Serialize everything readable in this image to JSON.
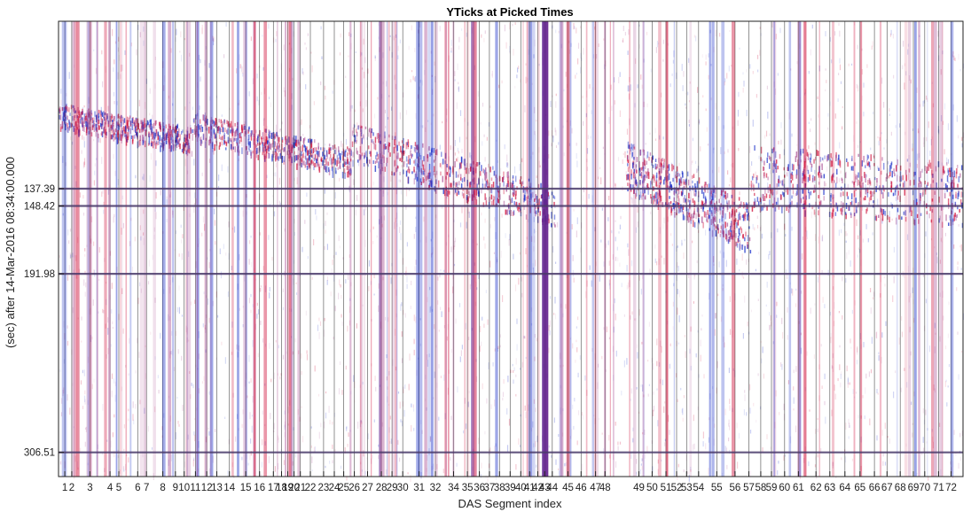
{
  "chart_data": {
    "type": "heatmap",
    "title": "YTicks at Picked Times",
    "xlabel": "DAS Segment index",
    "ylabel": "(sec) after 14-Mar-2016 08:34:00.000",
    "x_ticks": [
      {
        "label": "1",
        "pos": 1
      },
      {
        "label": "2",
        "pos": 1.55
      },
      {
        "label": "3",
        "pos": 3
      },
      {
        "label": "4",
        "pos": 4.6
      },
      {
        "label": "5",
        "pos": 5.3
      },
      {
        "label": "6",
        "pos": 6.8
      },
      {
        "label": "7",
        "pos": 7.5
      },
      {
        "label": "8",
        "pos": 8.8
      },
      {
        "label": "9",
        "pos": 9.8
      },
      {
        "label": "10",
        "pos": 10.5
      },
      {
        "label": "11",
        "pos": 11.4
      },
      {
        "label": "12",
        "pos": 12.3
      },
      {
        "label": "13",
        "pos": 13.1
      },
      {
        "label": "14",
        "pos": 14.1
      },
      {
        "label": "15",
        "pos": 15.4
      },
      {
        "label": "16",
        "pos": 16.5
      },
      {
        "label": "17",
        "pos": 17.6
      },
      {
        "label": "18",
        "pos": 18.25
      },
      {
        "label": "19",
        "pos": 18.75
      },
      {
        "label": "20",
        "pos": 19.25
      },
      {
        "label": "21",
        "pos": 19.75
      },
      {
        "label": "22",
        "pos": 20.55
      },
      {
        "label": "23",
        "pos": 21.6
      },
      {
        "label": "24",
        "pos": 22.45
      },
      {
        "label": "25",
        "pos": 23.2
      },
      {
        "label": "26",
        "pos": 24.05
      },
      {
        "label": "27",
        "pos": 25.1
      },
      {
        "label": "28",
        "pos": 26.2
      },
      {
        "label": "29",
        "pos": 27.05
      },
      {
        "label": "30",
        "pos": 27.9
      },
      {
        "label": "31",
        "pos": 29.2
      },
      {
        "label": "32",
        "pos": 30.5
      },
      {
        "label": "34",
        "pos": 31.95
      },
      {
        "label": "35",
        "pos": 33.05
      },
      {
        "label": "36",
        "pos": 34.0
      },
      {
        "label": "37",
        "pos": 34.8
      },
      {
        "label": "38",
        "pos": 35.6
      },
      {
        "label": "39",
        "pos": 36.45
      },
      {
        "label": "40",
        "pos": 37.3
      },
      {
        "label": "41",
        "pos": 38.0
      },
      {
        "label": "42",
        "pos": 38.65
      },
      {
        "label": "43",
        "pos": 39.2
      },
      {
        "label": "44",
        "pos": 39.8
      },
      {
        "label": "45",
        "pos": 41.05
      },
      {
        "label": "46",
        "pos": 42.1
      },
      {
        "label": "47",
        "pos": 43.25
      },
      {
        "label": "48",
        "pos": 44.0
      },
      {
        "label": "49",
        "pos": 46.7
      },
      {
        "label": "50",
        "pos": 47.75
      },
      {
        "label": "51",
        "pos": 48.85
      },
      {
        "label": "52",
        "pos": 49.7
      },
      {
        "label": "53",
        "pos": 50.5
      },
      {
        "label": "54",
        "pos": 51.45
      },
      {
        "label": "55",
        "pos": 52.9
      },
      {
        "label": "56",
        "pos": 54.35
      },
      {
        "label": "57",
        "pos": 55.45
      },
      {
        "label": "58",
        "pos": 56.4
      },
      {
        "label": "59",
        "pos": 57.25
      },
      {
        "label": "60",
        "pos": 58.3
      },
      {
        "label": "61",
        "pos": 59.4
      },
      {
        "label": "62",
        "pos": 60.8
      },
      {
        "label": "63",
        "pos": 61.9
      },
      {
        "label": "64",
        "pos": 63.1
      },
      {
        "label": "65",
        "pos": 64.3
      },
      {
        "label": "66",
        "pos": 65.45
      },
      {
        "label": "67",
        "pos": 66.45
      },
      {
        "label": "68",
        "pos": 67.5
      },
      {
        "label": "69",
        "pos": 68.55
      },
      {
        "label": "70",
        "pos": 69.45
      },
      {
        "label": "71",
        "pos": 70.55
      },
      {
        "label": "72",
        "pos": 71.55
      }
    ],
    "y_ticks": [
      137.39,
      148.42,
      191.98,
      306.51
    ],
    "y_tick_labels": [
      "137.39",
      "148.42",
      "191.98",
      "306.51"
    ],
    "ylim": [
      30,
      322
    ],
    "xlim": [
      0.5,
      72.5
    ],
    "y_reversed": true,
    "picked_times": [
      137.39,
      148.42,
      191.98,
      306.51
    ],
    "colors": {
      "positive": "#d0103a",
      "negative": "#1a2fc8",
      "mid": "#b05a9a",
      "background": "#ffffff",
      "axis": "#222222"
    }
  }
}
